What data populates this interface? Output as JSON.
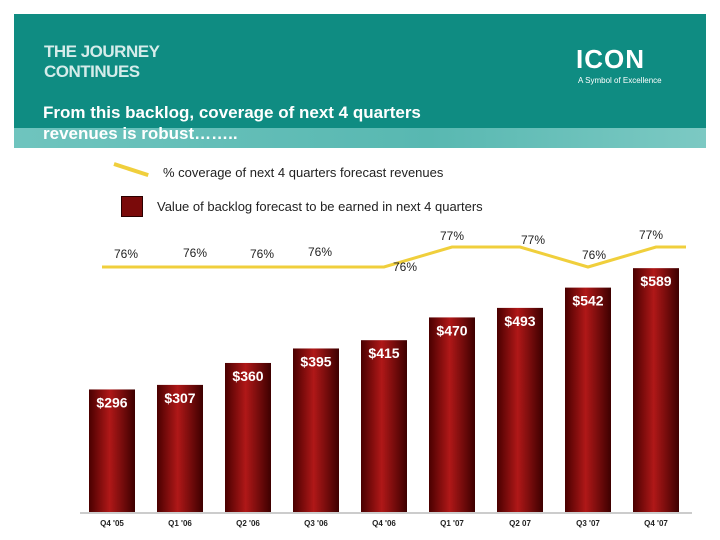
{
  "header": {
    "brand_line1": "THE JOURNEY",
    "brand_line2": "CONTINUES",
    "headline_line1": "From this backlog, coverage of next 4 quarters",
    "headline_line2": "revenues is robust……..",
    "logo_text": "ICON",
    "logo_tagline": "A Symbol of Excellence",
    "banner_color": "#0f8c82"
  },
  "legend": {
    "line_label": "% coverage of next 4 quarters forecast revenues",
    "bar_label": "Value of backlog forecast to be earned in next 4 quarters"
  },
  "chart_data": {
    "type": "bar",
    "categories": [
      "Q4 '05",
      "Q1 '06",
      "Q2 '06",
      "Q3 '06",
      "Q4 '06",
      "Q1 '07",
      "Q2 07",
      "Q3 '07",
      "Q4 '07"
    ],
    "series": [
      {
        "type": "bar",
        "values": [
          296,
          307,
          360,
          395,
          415,
          470,
          493,
          542,
          589
        ],
        "labels": [
          "$296",
          "$307",
          "$360",
          "$395",
          "$415",
          "$470",
          "$493",
          "$542",
          "$589"
        ],
        "color": "#8b0d0d"
      },
      {
        "type": "line",
        "values": [
          76,
          76,
          76,
          76,
          76,
          77,
          77,
          76,
          77
        ],
        "labels": [
          "76%",
          "76%",
          "76%",
          "76%",
          "76%",
          "77%",
          "77%",
          "76%",
          "77%"
        ],
        "color": "#f0cf3c"
      }
    ]
  }
}
